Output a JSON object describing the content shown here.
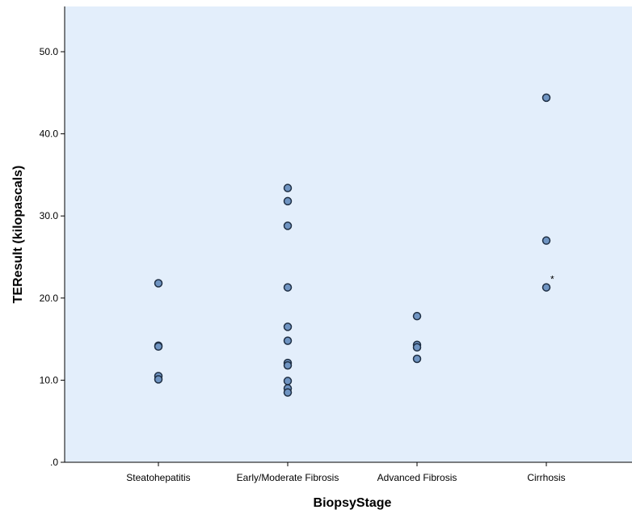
{
  "chart_data": {
    "type": "scatter",
    "xlabel": "BiopsyStage",
    "ylabel": "TEResult (kilopascals)",
    "categories": [
      "Steatohepatitis",
      "Early/Moderate Fibrosis",
      "Advanced Fibrosis",
      "Cirrhosis"
    ],
    "ylim": [
      0,
      55
    ],
    "yticks": [
      0,
      10,
      20,
      30,
      40,
      50
    ],
    "ytick_labels": [
      ".0",
      "10.0",
      "20.0",
      "30.0",
      "40.0",
      "50.0"
    ],
    "grid": false,
    "legend": "none",
    "background_color": "#e3eefb",
    "marker_color": "#6f94c2",
    "marker_edge_color": "#1f2f44",
    "points": [
      {
        "category": "Steatohepatitis",
        "value": 21.8
      },
      {
        "category": "Steatohepatitis",
        "value": 14.2
      },
      {
        "category": "Steatohepatitis",
        "value": 14.1
      },
      {
        "category": "Steatohepatitis",
        "value": 10.5
      },
      {
        "category": "Steatohepatitis",
        "value": 10.1
      },
      {
        "category": "Early/Moderate Fibrosis",
        "value": 33.4
      },
      {
        "category": "Early/Moderate Fibrosis",
        "value": 31.8
      },
      {
        "category": "Early/Moderate Fibrosis",
        "value": 28.8
      },
      {
        "category": "Early/Moderate Fibrosis",
        "value": 21.3
      },
      {
        "category": "Early/Moderate Fibrosis",
        "value": 16.5
      },
      {
        "category": "Early/Moderate Fibrosis",
        "value": 14.8
      },
      {
        "category": "Early/Moderate Fibrosis",
        "value": 12.1
      },
      {
        "category": "Early/Moderate Fibrosis",
        "value": 11.8
      },
      {
        "category": "Early/Moderate Fibrosis",
        "value": 9.9
      },
      {
        "category": "Early/Moderate Fibrosis",
        "value": 9.0
      },
      {
        "category": "Early/Moderate Fibrosis",
        "value": 8.5
      },
      {
        "category": "Advanced Fibrosis",
        "value": 17.8
      },
      {
        "category": "Advanced Fibrosis",
        "value": 14.3
      },
      {
        "category": "Advanced Fibrosis",
        "value": 14.0
      },
      {
        "category": "Advanced Fibrosis",
        "value": 12.6
      },
      {
        "category": "Cirrhosis",
        "value": 44.4
      },
      {
        "category": "Cirrhosis",
        "value": 27.0
      },
      {
        "category": "Cirrhosis",
        "value": 21.3
      }
    ],
    "annotations": [
      {
        "text": "*",
        "category": "Cirrhosis",
        "value": 22.5
      }
    ]
  }
}
